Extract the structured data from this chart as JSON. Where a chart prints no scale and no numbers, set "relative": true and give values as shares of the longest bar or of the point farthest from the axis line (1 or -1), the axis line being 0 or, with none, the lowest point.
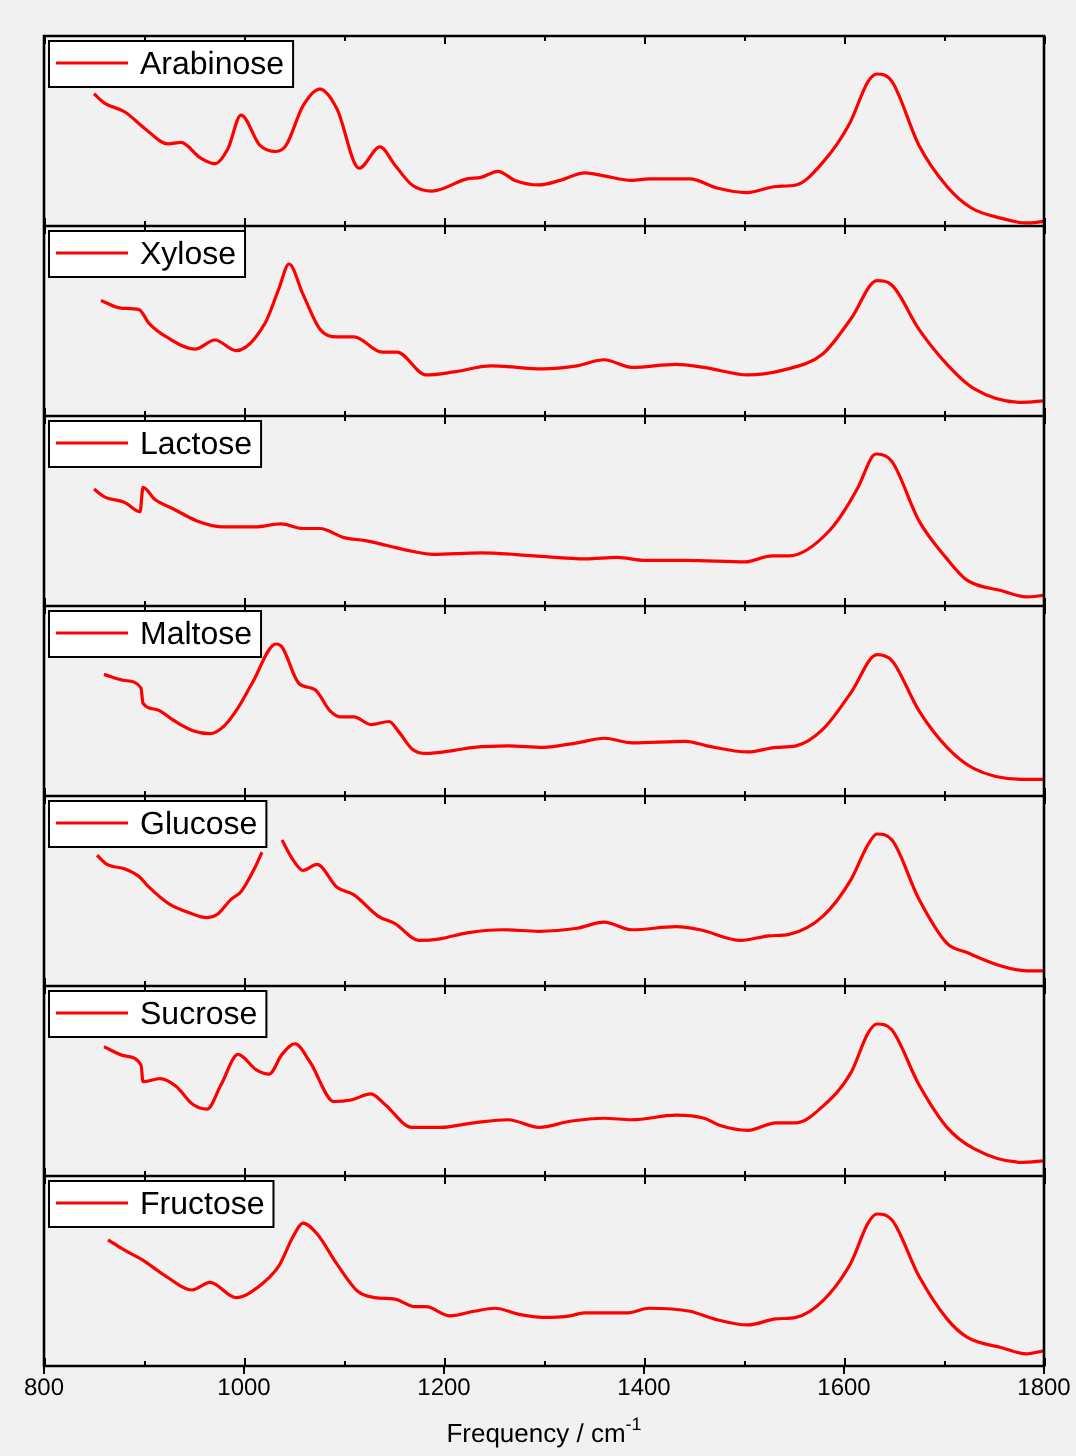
{
  "chart_data": [
    {
      "type": "line",
      "relative": true,
      "xlim": [
        800,
        1800
      ],
      "xticks": [
        800,
        1000,
        1200,
        1400,
        1600,
        1800
      ],
      "tick_labels": false,
      "legend": "top left",
      "x": [
        850,
        860,
        881,
        901,
        924,
        937,
        956,
        971,
        984,
        997,
        1016,
        1032,
        1042,
        1059,
        1076,
        1093,
        1115,
        1136,
        1151,
        1168,
        1188,
        1223,
        1237,
        1254,
        1271,
        1295,
        1316,
        1341,
        1360,
        1388,
        1405,
        1446,
        1473,
        1503,
        1532,
        1552,
        1579,
        1606,
        1624,
        1633,
        1648,
        1675,
        1703,
        1727,
        1758,
        1782,
        1800
      ],
      "series": [
        {
          "name": "Arabinose",
          "color": "#ff0000",
          "values": [
            0.87,
            0.81,
            0.75,
            0.64,
            0.54,
            0.55,
            0.45,
            0.41,
            0.51,
            0.73,
            0.53,
            0.49,
            0.53,
            0.79,
            0.9,
            0.77,
            0.38,
            0.52,
            0.4,
            0.27,
            0.23,
            0.31,
            0.32,
            0.36,
            0.3,
            0.27,
            0.3,
            0.35,
            0.33,
            0.3,
            0.31,
            0.31,
            0.25,
            0.22,
            0.26,
            0.27,
            0.42,
            0.68,
            0.95,
            1.0,
            0.95,
            0.53,
            0.26,
            0.12,
            0.05,
            0.02,
            0.03
          ]
        }
      ]
    },
    {
      "type": "line",
      "relative": true,
      "xlim": [
        800,
        1800
      ],
      "xticks": [
        800,
        1000,
        1200,
        1400,
        1600,
        1800
      ],
      "tick_labels": false,
      "legend": "top left",
      "x": [
        857,
        877,
        895,
        905,
        925,
        951,
        971,
        992,
        1021,
        1035,
        1045,
        1059,
        1076,
        1093,
        1110,
        1138,
        1153,
        1182,
        1210,
        1247,
        1299,
        1333,
        1360,
        1388,
        1432,
        1460,
        1504,
        1538,
        1579,
        1607,
        1633,
        1648,
        1675,
        1703,
        1730,
        1778,
        1800
      ],
      "series": [
        {
          "name": "Xylose",
          "color": "#ff0000",
          "values": [
            0.76,
            0.71,
            0.7,
            0.61,
            0.51,
            0.44,
            0.5,
            0.43,
            0.61,
            0.84,
            1.0,
            0.8,
            0.57,
            0.52,
            0.52,
            0.42,
            0.42,
            0.27,
            0.29,
            0.33,
            0.31,
            0.33,
            0.37,
            0.32,
            0.34,
            0.32,
            0.27,
            0.3,
            0.41,
            0.64,
            0.89,
            0.86,
            0.57,
            0.34,
            0.18,
            0.09,
            0.1
          ]
        }
      ]
    },
    {
      "type": "line",
      "relative": true,
      "xlim": [
        800,
        1800
      ],
      "xticks": [
        800,
        1000,
        1200,
        1400,
        1600,
        1800
      ],
      "tick_labels": false,
      "legend": "top left",
      "x": [
        850,
        860,
        881,
        896,
        899,
        911,
        929,
        953,
        980,
        1011,
        1037,
        1059,
        1076,
        1100,
        1121,
        1142,
        1168,
        1189,
        1237,
        1290,
        1342,
        1373,
        1401,
        1442,
        1501,
        1528,
        1545,
        1586,
        1614,
        1629,
        1633,
        1648,
        1675,
        1703,
        1723,
        1758,
        1782,
        1800
      ],
      "series": [
        {
          "name": "Lactose",
          "color": "#ff0000",
          "values": [
            0.77,
            0.72,
            0.68,
            0.62,
            0.78,
            0.7,
            0.64,
            0.56,
            0.52,
            0.52,
            0.54,
            0.51,
            0.51,
            0.45,
            0.43,
            0.4,
            0.36,
            0.34,
            0.35,
            0.33,
            0.31,
            0.32,
            0.3,
            0.3,
            0.29,
            0.33,
            0.33,
            0.5,
            0.78,
            0.99,
            1.0,
            0.95,
            0.56,
            0.31,
            0.17,
            0.1,
            0.06,
            0.07
          ]
        }
      ]
    },
    {
      "type": "line",
      "relative": true,
      "xlim": [
        800,
        1800
      ],
      "xticks": [
        800,
        1000,
        1200,
        1400,
        1600,
        1800
      ],
      "tick_labels": false,
      "legend": "top left",
      "x": [
        860,
        881,
        897,
        899,
        912,
        929,
        949,
        966,
        980,
        994,
        1008,
        1032,
        1038,
        1055,
        1071,
        1086,
        1097,
        1110,
        1127,
        1145,
        1155,
        1168,
        1182,
        1210,
        1230,
        1264,
        1299,
        1333,
        1360,
        1388,
        1442,
        1463,
        1504,
        1532,
        1552,
        1579,
        1607,
        1633,
        1648,
        1675,
        1703,
        1730,
        1778,
        1800
      ],
      "series": [
        {
          "name": "Maltose",
          "color": "#ff0000",
          "values": [
            0.8,
            0.76,
            0.71,
            0.61,
            0.57,
            0.5,
            0.43,
            0.41,
            0.46,
            0.58,
            0.74,
            1.0,
            0.98,
            0.74,
            0.7,
            0.56,
            0.52,
            0.52,
            0.47,
            0.49,
            0.42,
            0.31,
            0.28,
            0.3,
            0.32,
            0.33,
            0.32,
            0.35,
            0.38,
            0.35,
            0.36,
            0.33,
            0.29,
            0.32,
            0.33,
            0.44,
            0.68,
            0.93,
            0.89,
            0.56,
            0.32,
            0.18,
            0.11,
            0.11
          ]
        }
      ]
    },
    {
      "type": "line",
      "relative": true,
      "xlim": [
        800,
        1800
      ],
      "xticks": [
        800,
        1000,
        1200,
        1400,
        1600,
        1800
      ],
      "tick_labels": false,
      "legend": "top left",
      "x": [
        853,
        863,
        881,
        895,
        905,
        925,
        946,
        963,
        973,
        987,
        997,
        1011,
        1018,
        1028,
        1038,
        1049,
        1059,
        1073,
        1093,
        1110,
        1134,
        1151,
        1175,
        1196,
        1223,
        1258,
        1295,
        1333,
        1360,
        1388,
        1432,
        1456,
        1497,
        1525,
        1545,
        1579,
        1607,
        1624,
        1633,
        1648,
        1675,
        1703,
        1723,
        1758,
        1782,
        1800
      ],
      "series": [
        {
          "name": "Glucose",
          "color": "#ff0000",
          "values": [
            0.86,
            0.8,
            0.77,
            0.72,
            0.65,
            0.54,
            0.48,
            0.45,
            0.47,
            0.57,
            0.62,
            0.78,
            0.88,
            null,
            0.96,
            0.83,
            0.76,
            0.8,
            0.65,
            0.6,
            0.46,
            0.41,
            0.3,
            0.31,
            0.35,
            0.37,
            0.36,
            0.38,
            0.42,
            0.37,
            0.39,
            0.37,
            0.3,
            0.33,
            0.34,
            0.46,
            0.7,
            0.93,
            1.0,
            0.96,
            0.57,
            0.28,
            0.22,
            0.13,
            0.1,
            0.1
          ]
        }
      ]
    },
    {
      "type": "line",
      "relative": true,
      "xlim": [
        800,
        1800
      ],
      "xticks": [
        800,
        1000,
        1200,
        1400,
        1600,
        1800
      ],
      "tick_labels": false,
      "legend": "top left",
      "x": [
        860,
        881,
        897,
        899,
        916,
        932,
        949,
        963,
        977,
        994,
        1012,
        1025,
        1038,
        1051,
        1066,
        1090,
        1107,
        1127,
        1141,
        1168,
        1196,
        1230,
        1264,
        1295,
        1326,
        1360,
        1388,
        1432,
        1460,
        1477,
        1504,
        1532,
        1552,
        1579,
        1607,
        1624,
        1633,
        1648,
        1675,
        1703,
        1730,
        1778,
        1800
      ],
      "series": [
        {
          "name": "Sucrose",
          "color": "#ff0000",
          "values": [
            0.85,
            0.79,
            0.73,
            0.62,
            0.64,
            0.59,
            0.47,
            0.44,
            0.6,
            0.8,
            0.7,
            0.67,
            0.8,
            0.87,
            0.75,
            0.49,
            0.5,
            0.54,
            0.47,
            0.32,
            0.32,
            0.35,
            0.37,
            0.32,
            0.36,
            0.38,
            0.37,
            0.4,
            0.38,
            0.33,
            0.3,
            0.35,
            0.35,
            0.46,
            0.68,
            0.94,
            1.0,
            0.96,
            0.6,
            0.32,
            0.18,
            0.09,
            0.1
          ]
        }
      ]
    },
    {
      "type": "line",
      "relative": true,
      "xlim": [
        800,
        1800
      ],
      "xticks": [
        800,
        1000,
        1200,
        1400,
        1600,
        1800
      ],
      "tick_labels": "x",
      "legend": "top left",
      "xlabel": "Frequency / cm$^{-1}$",
      "x": [
        864,
        881,
        898,
        922,
        948,
        966,
        992,
        1018,
        1035,
        1049,
        1059,
        1073,
        1093,
        1114,
        1131,
        1151,
        1171,
        1182,
        1206,
        1230,
        1251,
        1275,
        1299,
        1326,
        1340,
        1384,
        1405,
        1446,
        1470,
        1504,
        1532,
        1552,
        1579,
        1607,
        1624,
        1633,
        1648,
        1675,
        1703,
        1723,
        1758,
        1782,
        1800
      ],
      "series": [
        {
          "name": "Fructose",
          "color": "#ff0000",
          "values": [
            0.83,
            0.76,
            0.7,
            0.59,
            0.5,
            0.55,
            0.45,
            0.54,
            0.66,
            0.85,
            0.94,
            0.87,
            0.67,
            0.49,
            0.45,
            0.44,
            0.39,
            0.39,
            0.33,
            0.36,
            0.38,
            0.34,
            0.32,
            0.33,
            0.35,
            0.35,
            0.38,
            0.36,
            0.31,
            0.27,
            0.31,
            0.32,
            0.43,
            0.68,
            0.94,
            1.0,
            0.96,
            0.59,
            0.31,
            0.19,
            0.12,
            0.08,
            0.1
          ]
        }
      ]
    }
  ]
}
